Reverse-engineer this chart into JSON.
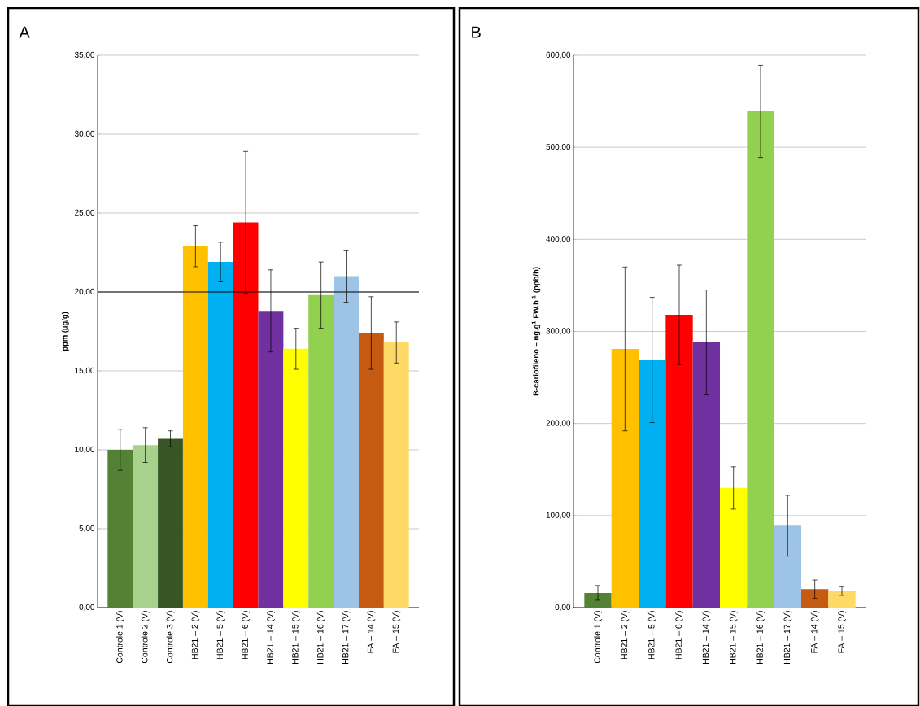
{
  "chart_data": [
    {
      "type": "bar",
      "title": "A",
      "ylabel": "ppm (µg/g)",
      "categories": [
        "Controle 1 (V)",
        "Controle 2 (V)",
        "Controle 3 (V)",
        "HB21 – 2 (V)",
        "HB21 – 5 (V)",
        "HB21 – 6 (V)",
        "HB21 – 14 (V)",
        "HB21 – 15 (V)",
        "HB21 – 16 (V)",
        "HB21 – 17 (V)",
        "FA – 14 (V)",
        "FA – 15 (V)"
      ],
      "values": [
        10.0,
        10.3,
        10.7,
        22.9,
        21.9,
        24.4,
        18.8,
        16.4,
        19.8,
        21.0,
        17.4,
        16.8
      ],
      "errors": [
        1.3,
        1.1,
        0.5,
        1.3,
        1.25,
        4.5,
        2.6,
        1.3,
        2.1,
        1.65,
        2.3,
        1.3
      ],
      "colors": [
        "#548235",
        "#a9d18e",
        "#375623",
        "#ffc000",
        "#00b0f0",
        "#ff0000",
        "#7030a0",
        "#ffff00",
        "#92d050",
        "#9dc3e6",
        "#c55a11",
        "#ffd966"
      ],
      "ylim": [
        0,
        35
      ],
      "yticks": [
        {
          "value": 0,
          "label": "0,00"
        },
        {
          "value": 5,
          "label": "5,00"
        },
        {
          "value": 10,
          "label": "10,00"
        },
        {
          "value": 15,
          "label": "15,00"
        },
        {
          "value": 20,
          "label": "20,00"
        },
        {
          "value": 25,
          "label": "25,00"
        },
        {
          "value": 30,
          "label": "30,00"
        },
        {
          "value": 35,
          "label": "35,00"
        }
      ],
      "ref_lines": [
        {
          "axis": "y",
          "value": 20,
          "color": "#000000"
        }
      ],
      "grid": "y"
    },
    {
      "type": "bar",
      "title": "B",
      "ylabel": "B-cariofileno – ng.g$^{1}$ FW.h$^{-1}$ (ppb/h)",
      "categories": [
        "Controle 1 (V)",
        "HB21 – 2 (V)",
        "HB21 – 5 (V)",
        "HB21 – 6 (V)",
        "HB21 – 14 (V)",
        "HB21 – 15 (V)",
        "HB21 – 16 (V)",
        "HB21 – 17 (V)",
        "FA – 14 (V)",
        "FA – 15 (V)"
      ],
      "values": [
        16,
        281,
        269,
        318,
        288,
        130,
        539,
        89,
        20,
        18
      ],
      "errors": [
        8,
        89,
        68,
        54,
        57,
        23,
        50,
        33,
        10,
        4.7
      ],
      "colors": [
        "#548235",
        "#ffc000",
        "#00b0f0",
        "#ff0000",
        "#7030a0",
        "#ffff00",
        "#92d050",
        "#9dc3e6",
        "#c55a11",
        "#ffd966"
      ],
      "ylim": [
        0,
        600
      ],
      "yticks": [
        {
          "value": 0,
          "label": "0,00"
        },
        {
          "value": 100,
          "label": "100,00"
        },
        {
          "value": 200,
          "label": "200,00"
        },
        {
          "value": 300,
          "label": "300,00"
        },
        {
          "value": 400,
          "label": "400,00"
        },
        {
          "value": 500,
          "label": "500,00"
        },
        {
          "value": 600,
          "label": "600,00"
        }
      ],
      "grid": "y"
    }
  ]
}
